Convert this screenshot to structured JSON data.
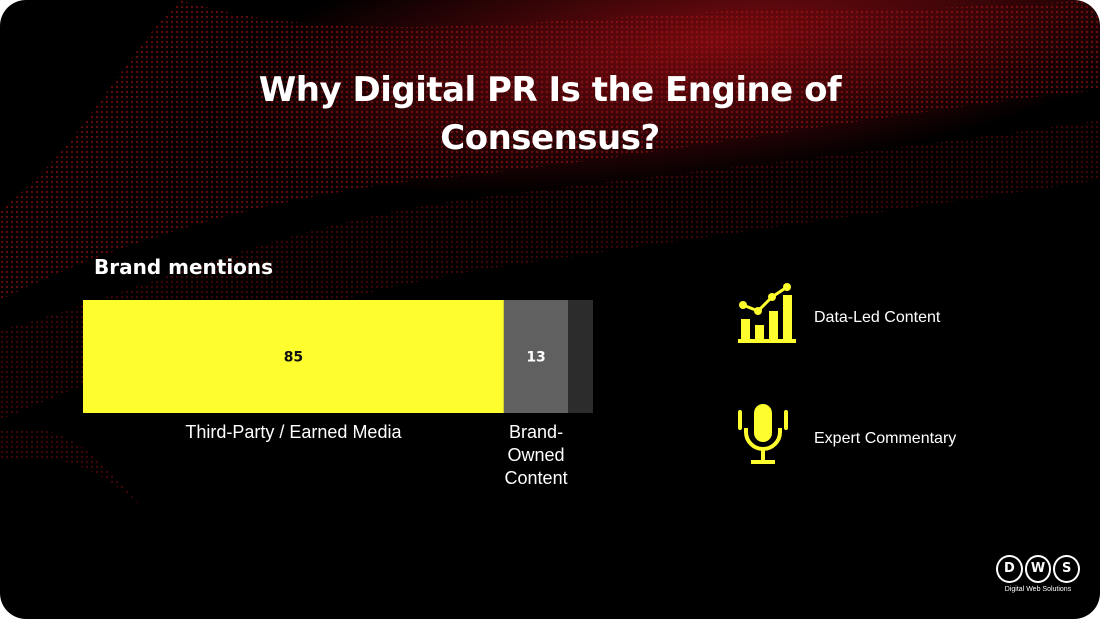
{
  "slide": {
    "title": "Why Digital PR Is the Engine of Consensus?",
    "colors": {
      "background": "#000000",
      "accent": "#fefe2e",
      "wave": "#7a0a0e"
    }
  },
  "chart_data": {
    "type": "bar",
    "orientation": "horizontal-stacked",
    "title": "Brand mentions",
    "categories": [
      "Third-Party / Earned Media",
      "Brand-Owned Content",
      ""
    ],
    "values": [
      85,
      13,
      5
    ],
    "labels": [
      "85",
      "13",
      ""
    ],
    "colors": [
      "#fefe2e",
      "#606060",
      "#2c2c2c"
    ],
    "grid": false,
    "legend": "none"
  },
  "features": [
    {
      "icon": "growth-chart-icon",
      "label": "Data-Led Content"
    },
    {
      "icon": "microphone-icon",
      "label": "Expert Commentary"
    }
  ],
  "logo": {
    "letters": [
      "D",
      "W",
      "S"
    ],
    "subtitle": "Digital Web Solutions"
  }
}
